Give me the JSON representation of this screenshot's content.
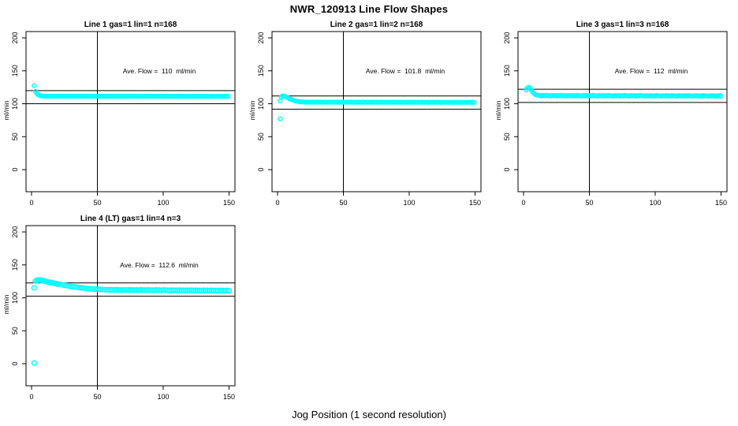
{
  "page": {
    "title": "NWR_120913  Line Flow Shapes",
    "xlabel": "Jog Position (1 second resolution)"
  },
  "colors": {
    "marker": "#00ffff",
    "axis": "#000000",
    "background": "#ffffff",
    "text": "#000000"
  },
  "chart_data": [
    {
      "type": "scatter",
      "title": "Line 1 gas=1 lin=1 n=168",
      "ylabel": "ml/min",
      "ave_flow": 110,
      "ave_flow_label": "Ave. Flow =  110  ml/min",
      "ave_label_pos": [
        97,
        146
      ],
      "xticks": [
        0,
        50,
        100,
        150
      ],
      "yticks": [
        0,
        50,
        100,
        150,
        200
      ],
      "xlim": [
        -4.2,
        154.5
      ],
      "ylim": [
        -33.5,
        209.6
      ],
      "vline_x": 50,
      "ref_lines": [
        100,
        120
      ],
      "marker_r": 2.4,
      "outliers": [
        [
          2,
          127.5
        ]
      ],
      "head": [
        [
          3,
          118.5
        ],
        [
          4,
          115.5
        ],
        [
          5,
          113.8
        ],
        [
          6,
          112.8
        ],
        [
          7,
          112.2
        ],
        [
          8,
          111.8
        ]
      ],
      "tail": {
        "x0": 9,
        "x1": 150,
        "step": 1.2,
        "y0": 111.5,
        "y1": 111.2,
        "jitter": [
          0.15,
          -0.15,
          0.25,
          -0.05,
          0.1,
          -0.2,
          0.2,
          0
        ]
      }
    },
    {
      "type": "scatter",
      "title": "Line 2 gas=1 lin=2 n=168",
      "ylabel": "ml/min",
      "ave_flow": 101.8,
      "ave_flow_label": "Ave. Flow =  101.8  ml/min",
      "ave_label_pos": [
        97,
        146
      ],
      "xticks": [
        0,
        50,
        100,
        150
      ],
      "yticks": [
        0,
        50,
        100,
        150,
        200
      ],
      "xlim": [
        -4.2,
        154.5
      ],
      "ylim": [
        -33.5,
        209.6
      ],
      "vline_x": 50,
      "ref_lines": [
        91.8,
        111.8
      ],
      "marker_r": 2.4,
      "outliers": [
        [
          2,
          77
        ],
        [
          2,
          104.5
        ]
      ],
      "head": [
        [
          3,
          110.5
        ],
        [
          4,
          112
        ],
        [
          5,
          111.6
        ],
        [
          6,
          110.8
        ],
        [
          7,
          109.8
        ],
        [
          8,
          108.8
        ],
        [
          9,
          107.8
        ],
        [
          10,
          106.8
        ],
        [
          11,
          106
        ],
        [
          12,
          105.3
        ],
        [
          13,
          104.7
        ],
        [
          14,
          104.2
        ],
        [
          15,
          103.8
        ],
        [
          16,
          103.4
        ],
        [
          17,
          103.1
        ],
        [
          18,
          102.9
        ],
        [
          19,
          102.7
        ],
        [
          20,
          102.5
        ]
      ],
      "tail": {
        "x0": 21,
        "x1": 150,
        "step": 1.2,
        "y0": 102.4,
        "y1": 102.1,
        "jitter": [
          0.15,
          -0.1,
          0.2,
          -0.15,
          0.05,
          0.2,
          -0.2,
          0
        ]
      }
    },
    {
      "type": "scatter",
      "title": "Line 3 gas=1 lin=3 n=168",
      "ylabel": "ml/min",
      "ave_flow": 112,
      "ave_flow_label": "Ave. Flow =  112  ml/min",
      "ave_label_pos": [
        97,
        146
      ],
      "xticks": [
        0,
        50,
        100,
        150
      ],
      "yticks": [
        0,
        50,
        100,
        150,
        200
      ],
      "xlim": [
        -4.2,
        154.5
      ],
      "ylim": [
        -33.5,
        209.6
      ],
      "vline_x": 50,
      "ref_lines": [
        102,
        122
      ],
      "marker_r": 2.4,
      "outliers": [],
      "head": [
        [
          2,
          121
        ],
        [
          3,
          124
        ],
        [
          4,
          125
        ],
        [
          5,
          123.5
        ],
        [
          6,
          120.5
        ],
        [
          7,
          117.5
        ],
        [
          8,
          115.5
        ],
        [
          9,
          114
        ],
        [
          10,
          113.2
        ],
        [
          11,
          112.7
        ]
      ],
      "tail": {
        "x0": 12,
        "x1": 150,
        "step": 1.2,
        "y0": 112.3,
        "y1": 111.8,
        "jitter": [
          0.5,
          -0.6,
          0.3,
          -0.4,
          0.7,
          -0.2,
          0.1,
          -0.7,
          0.4,
          -0.1
        ]
      }
    },
    {
      "type": "scatter",
      "title": "Line 4 (LT) gas=1 lin=4 n=3",
      "ylabel": "ml/min",
      "ave_flow": 112.6,
      "ave_flow_label": "Ave. Flow =  112.6  ml/min",
      "ave_label_pos": [
        97,
        146
      ],
      "xticks": [
        0,
        50,
        100,
        150
      ],
      "yticks": [
        0,
        50,
        100,
        150,
        200
      ],
      "xlim": [
        -4.2,
        154.5
      ],
      "ylim": [
        -33.5,
        209.6
      ],
      "vline_x": 50,
      "ref_lines": [
        102.6,
        122.6
      ],
      "marker_r": 2.9,
      "outliers": [
        [
          2,
          1
        ],
        [
          2,
          115
        ]
      ],
      "head": [
        [
          3,
          125.5
        ],
        [
          4,
          126.5
        ],
        [
          5,
          127
        ],
        [
          6,
          127
        ],
        [
          7,
          126.8
        ],
        [
          8,
          126.3
        ],
        [
          9,
          125.8
        ],
        [
          10,
          125.3
        ],
        [
          11,
          124.8
        ],
        [
          12,
          124.3
        ],
        [
          13,
          123.8
        ],
        [
          14,
          123.3
        ],
        [
          15,
          122.9
        ],
        [
          16,
          122.5
        ],
        [
          17,
          122.1
        ],
        [
          18,
          121.7
        ],
        [
          19,
          121.3
        ],
        [
          20,
          120.9
        ],
        [
          22,
          120.2
        ],
        [
          24,
          119.4
        ],
        [
          26,
          118.7
        ],
        [
          28,
          118
        ],
        [
          30,
          117.3
        ],
        [
          32,
          116.7
        ],
        [
          34,
          116.1
        ],
        [
          36,
          115.6
        ],
        [
          38,
          115.1
        ],
        [
          40,
          114.6
        ],
        [
          42,
          114.2
        ],
        [
          44,
          113.8
        ],
        [
          46,
          113.5
        ],
        [
          48,
          113.2
        ],
        [
          50,
          112.9
        ],
        [
          52,
          112.7
        ],
        [
          54,
          112.5
        ],
        [
          56,
          112.3
        ],
        [
          58,
          112.2
        ],
        [
          60,
          112.1
        ]
      ],
      "tail": {
        "x0": 61.5,
        "x1": 150,
        "step": 1.5,
        "y0": 112,
        "y1": 110.8,
        "jitter": [
          0.3,
          -0.3,
          0.5,
          -0.2,
          0.2,
          -0.5,
          0.4,
          -0.1
        ]
      }
    }
  ]
}
